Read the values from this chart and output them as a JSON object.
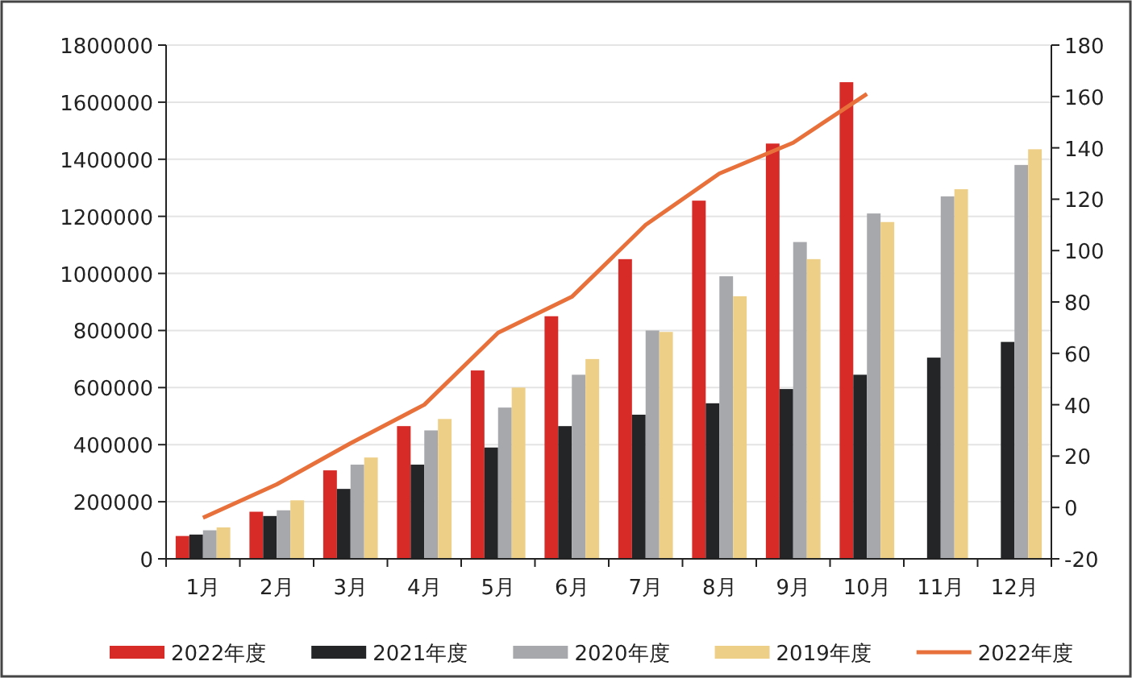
{
  "chart_data": {
    "type": "bar",
    "categories": [
      "1月",
      "2月",
      "3月",
      "4月",
      "5月",
      "6月",
      "7月",
      "8月",
      "9月",
      "10月",
      "11月",
      "12月"
    ],
    "series": [
      {
        "name": "2022年度",
        "color": "#d62b27",
        "values": [
          80000,
          165000,
          310000,
          465000,
          660000,
          850000,
          1050000,
          1255000,
          1455000,
          1670000,
          null,
          null
        ]
      },
      {
        "name": "2021年度",
        "color": "#232527",
        "values": [
          85000,
          150000,
          245000,
          330000,
          390000,
          465000,
          505000,
          545000,
          595000,
          645000,
          705000,
          760000
        ]
      },
      {
        "name": "2020年度",
        "color": "#a7a8ac",
        "values": [
          100000,
          170000,
          330000,
          450000,
          530000,
          645000,
          800000,
          990000,
          1110000,
          1210000,
          1270000,
          1380000
        ]
      },
      {
        "name": "2019年度",
        "color": "#eecf87",
        "values": [
          110000,
          205000,
          355000,
          490000,
          600000,
          700000,
          795000,
          920000,
          1050000,
          1180000,
          1295000,
          1435000
        ]
      },
      {
        "name": "2022年度",
        "type": "line",
        "axis": "y2",
        "color": "#e8703a",
        "values": [
          -4,
          9,
          25,
          40,
          68,
          82,
          110,
          130,
          142,
          161,
          null,
          null
        ]
      }
    ],
    "ylim": [
      0,
      1800000
    ],
    "yticks": [
      0,
      200000,
      400000,
      600000,
      800000,
      1000000,
      1200000,
      1400000,
      1600000,
      1800000
    ],
    "y2lim": [
      -20,
      180
    ],
    "y2ticks": [
      -20,
      0,
      20,
      40,
      60,
      80,
      100,
      120,
      140,
      160,
      180
    ],
    "grid": "y",
    "legend": "bottom",
    "marker": "none"
  }
}
